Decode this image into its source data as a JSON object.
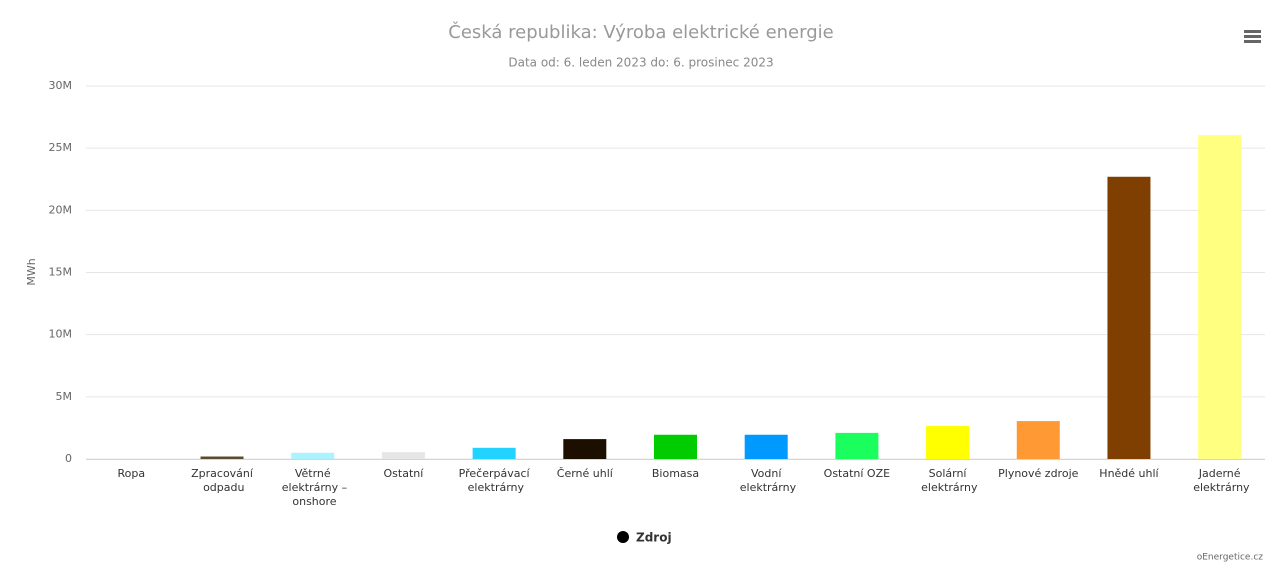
{
  "chart_data": {
    "type": "bar",
    "title": "Česká republika: Výroba elektrické energie",
    "subtitle": "Data od: 6. leden 2023 do: 6. prosinec 2023",
    "y_label": "MWh",
    "legend": "Zdroj",
    "legend_color": "#000000",
    "credits": "oEnergetice.cz",
    "grid": true,
    "categories": [
      "Ropa",
      "Zpracování odpadu",
      "Větrné elektrárny – onshore",
      "Ostatní",
      "Přečerpávací elektrárny",
      "Černé uhlí",
      "Biomasa",
      "Vodní elektrárny",
      "Ostatní OZE",
      "Solární elektrárny",
      "Plynové zdroje",
      "Hnědé uhlí",
      "Jaderné elektrárny"
    ],
    "values": [
      0,
      200000,
      500000,
      550000,
      900000,
      1600000,
      1950000,
      1950000,
      2100000,
      2650000,
      3050000,
      22700000,
      26050000
    ],
    "colors": [
      "#000000",
      "#5c4b2e",
      "#aaf3ff",
      "#e6e6e6",
      "#22d3ff",
      "#1c0f00",
      "#00cc00",
      "#0099ff",
      "#1aff5e",
      "#ffff00",
      "#ff9933",
      "#7f3f00",
      "#ffff80"
    ],
    "ylim": [
      0,
      30000000
    ],
    "yticks": [
      0,
      {
        "value": 5000000,
        "label": "5M"
      },
      {
        "value": 10000000,
        "label": "10M"
      },
      {
        "value": 15000000,
        "label": "15M"
      },
      {
        "value": 20000000,
        "label": "20M"
      },
      {
        "value": 25000000,
        "label": "25M"
      },
      {
        "value": 30000000,
        "label": "30M"
      }
    ]
  }
}
